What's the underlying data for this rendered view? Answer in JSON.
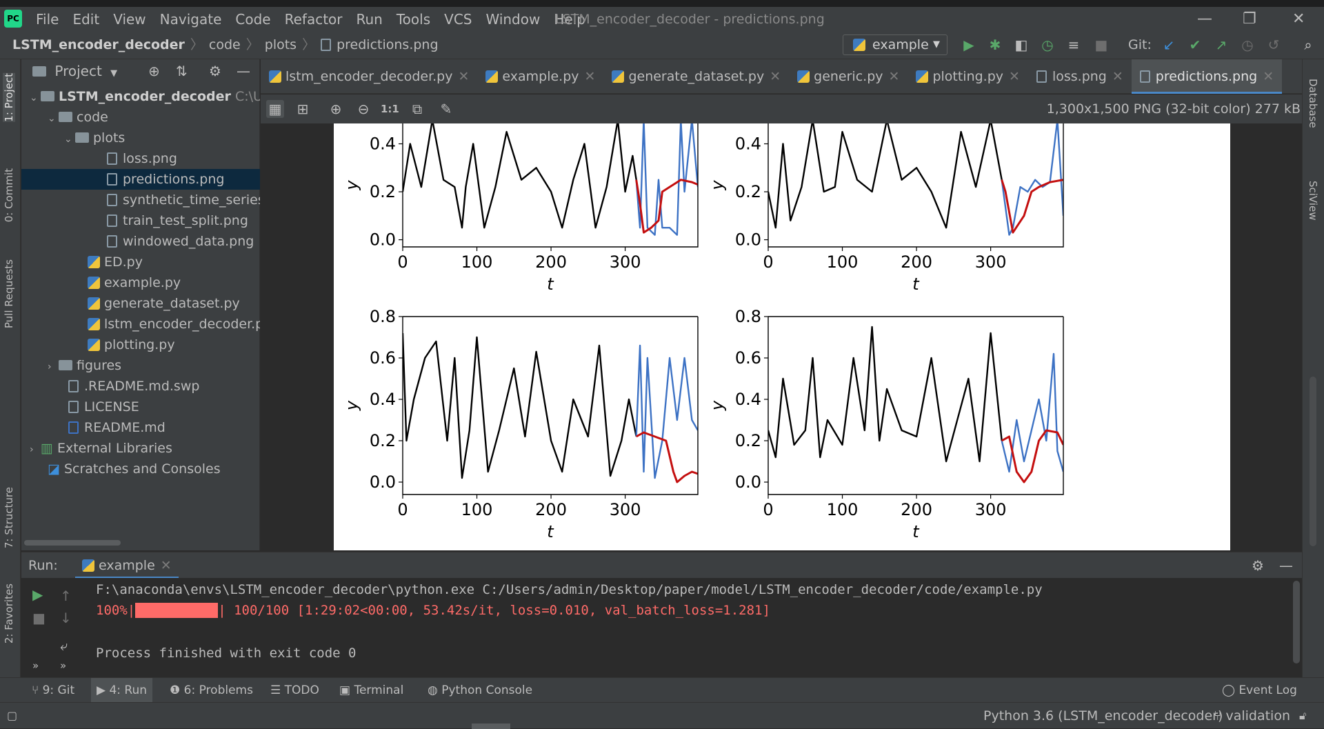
{
  "menubar": {
    "items": [
      "File",
      "Edit",
      "View",
      "Navigate",
      "Code",
      "Refactor",
      "Run",
      "Tools",
      "VCS",
      "Window",
      "Help"
    ],
    "window_title": "LSTM_encoder_decoder - predictions.png"
  },
  "breadcrumb": [
    "LSTM_encoder_decoder",
    "code",
    "plots",
    "predictions.png"
  ],
  "toolbar": {
    "run_config": "example",
    "git_label": "Git:"
  },
  "left_stripe": [
    "1: Project",
    "0: Commit",
    "Pull Requests",
    "7: Structure",
    "2: Favorites"
  ],
  "right_stripe": [
    "Database",
    "SciView"
  ],
  "project": {
    "title": "Project",
    "root": "LSTM_encoder_decoder",
    "root_path": "C:\\Use",
    "items": [
      {
        "label": "code"
      },
      {
        "label": "plots"
      },
      {
        "label": "loss.png"
      },
      {
        "label": "predictions.png"
      },
      {
        "label": "synthetic_time_series.p"
      },
      {
        "label": "train_test_split.png"
      },
      {
        "label": "windowed_data.png"
      },
      {
        "label": "ED.py"
      },
      {
        "label": "example.py"
      },
      {
        "label": "generate_dataset.py"
      },
      {
        "label": "lstm_encoder_decoder.py"
      },
      {
        "label": "plotting.py"
      },
      {
        "label": "figures"
      },
      {
        "label": ".README.md.swp"
      },
      {
        "label": "LICENSE"
      },
      {
        "label": "README.md"
      },
      {
        "label": "External Libraries"
      },
      {
        "label": "Scratches and Consoles"
      }
    ]
  },
  "tabs": [
    "lstm_encoder_decoder.py",
    "example.py",
    "generate_dataset.py",
    "generic.py",
    "plotting.py",
    "loss.png",
    "predictions.png"
  ],
  "image_info": "1,300x1,500 PNG (32-bit color) 277 kB",
  "chart_data": [
    {
      "type": "line",
      "xlabel": "t",
      "ylabel": "y",
      "xticks": [
        "0",
        "100",
        "200",
        "300"
      ],
      "yticks": [
        "0.0",
        "0.2",
        "0.4"
      ],
      "series": [
        {
          "color": "#000000",
          "x": [
            0,
            10,
            25,
            40,
            55,
            70,
            80,
            85,
            95,
            110,
            125,
            140,
            160,
            180,
            200,
            215,
            230,
            245,
            260,
            275,
            290,
            300,
            310,
            315
          ],
          "y": [
            0.2,
            0.4,
            0.22,
            0.5,
            0.25,
            0.22,
            0.05,
            0.22,
            0.4,
            0.05,
            0.22,
            0.45,
            0.25,
            0.3,
            0.2,
            0.05,
            0.25,
            0.4,
            0.05,
            0.22,
            0.5,
            0.2,
            0.35,
            0.25
          ]
        },
        {
          "color": "#3d72c4",
          "x": [
            315,
            320,
            325,
            330,
            340,
            345,
            350,
            360,
            370,
            375,
            380,
            390,
            398
          ],
          "y": [
            0.25,
            0.05,
            0.5,
            0.05,
            0.02,
            0.25,
            0.05,
            0.05,
            0.02,
            0.5,
            0.2,
            0.5,
            0.22
          ]
        },
        {
          "color": "#c40f0f",
          "x": [
            315,
            320,
            325,
            335,
            345,
            350,
            360,
            375,
            390,
            398
          ],
          "y": [
            0.25,
            0.15,
            0.03,
            0.05,
            0.08,
            0.2,
            0.22,
            0.25,
            0.24,
            0.23
          ]
        }
      ]
    },
    {
      "type": "line",
      "xlabel": "t",
      "ylabel": "y",
      "xticks": [
        "0",
        "100",
        "200",
        "300"
      ],
      "yticks": [
        "0.0",
        "0.2",
        "0.4"
      ],
      "series": [
        {
          "color": "#000000",
          "x": [
            0,
            10,
            20,
            30,
            45,
            60,
            75,
            90,
            100,
            120,
            140,
            160,
            180,
            200,
            220,
            240,
            260,
            280,
            300,
            315
          ],
          "y": [
            0.2,
            0.05,
            0.4,
            0.08,
            0.22,
            0.5,
            0.2,
            0.22,
            0.45,
            0.25,
            0.2,
            0.5,
            0.25,
            0.3,
            0.2,
            0.05,
            0.45,
            0.22,
            0.5,
            0.25
          ]
        },
        {
          "color": "#3d72c4",
          "x": [
            315,
            325,
            330,
            340,
            350,
            360,
            370,
            380,
            390,
            398
          ],
          "y": [
            0.25,
            0.02,
            0.05,
            0.22,
            0.2,
            0.25,
            0.22,
            0.24,
            0.5,
            0.1
          ]
        },
        {
          "color": "#c40f0f",
          "x": [
            315,
            320,
            330,
            345,
            355,
            365,
            380,
            398
          ],
          "y": [
            0.25,
            0.2,
            0.03,
            0.1,
            0.2,
            0.22,
            0.24,
            0.25
          ]
        }
      ]
    },
    {
      "type": "line",
      "xlabel": "t",
      "ylabel": "y",
      "xticks": [
        "0",
        "100",
        "200",
        "300"
      ],
      "yticks": [
        "0.0",
        "0.2",
        "0.4",
        "0.6",
        "0.8"
      ],
      "series": [
        {
          "color": "#000000",
          "x": [
            0,
            5,
            15,
            30,
            45,
            60,
            70,
            80,
            90,
            100,
            115,
            130,
            150,
            165,
            180,
            200,
            215,
            230,
            250,
            265,
            280,
            295,
            305,
            315
          ],
          "y": [
            0.72,
            0.2,
            0.4,
            0.6,
            0.68,
            0.2,
            0.6,
            0.02,
            0.25,
            0.7,
            0.05,
            0.25,
            0.55,
            0.22,
            0.63,
            0.2,
            0.05,
            0.4,
            0.22,
            0.66,
            0.03,
            0.2,
            0.4,
            0.22
          ]
        },
        {
          "color": "#3d72c4",
          "x": [
            315,
            320,
            325,
            330,
            340,
            350,
            360,
            370,
            380,
            390,
            398
          ],
          "y": [
            0.22,
            0.66,
            0.05,
            0.6,
            0.02,
            0.2,
            0.6,
            0.3,
            0.6,
            0.3,
            0.25
          ]
        },
        {
          "color": "#c40f0f",
          "x": [
            315,
            325,
            340,
            355,
            365,
            370,
            380,
            390,
            398
          ],
          "y": [
            0.22,
            0.24,
            0.22,
            0.2,
            0.05,
            0.0,
            0.03,
            0.05,
            0.04
          ]
        }
      ]
    },
    {
      "type": "line",
      "xlabel": "t",
      "ylabel": "y",
      "xticks": [
        "0",
        "100",
        "200",
        "300"
      ],
      "yticks": [
        "0.0",
        "0.2",
        "0.4",
        "0.6",
        "0.8"
      ],
      "series": [
        {
          "color": "#000000",
          "x": [
            0,
            10,
            20,
            35,
            50,
            60,
            70,
            80,
            100,
            115,
            130,
            140,
            150,
            160,
            180,
            200,
            220,
            240,
            255,
            270,
            285,
            300,
            315
          ],
          "y": [
            0.25,
            0.12,
            0.5,
            0.18,
            0.25,
            0.6,
            0.12,
            0.3,
            0.18,
            0.6,
            0.25,
            0.75,
            0.2,
            0.45,
            0.25,
            0.22,
            0.6,
            0.1,
            0.3,
            0.5,
            0.1,
            0.72,
            0.2
          ]
        },
        {
          "color": "#3d72c4",
          "x": [
            315,
            325,
            335,
            345,
            355,
            365,
            375,
            385,
            390,
            398
          ],
          "y": [
            0.2,
            0.05,
            0.3,
            0.1,
            0.25,
            0.4,
            0.2,
            0.62,
            0.15,
            0.05
          ]
        },
        {
          "color": "#c40f0f",
          "x": [
            315,
            325,
            335,
            345,
            355,
            365,
            375,
            390,
            398
          ],
          "y": [
            0.2,
            0.22,
            0.05,
            0.0,
            0.05,
            0.2,
            0.25,
            0.24,
            0.18
          ]
        }
      ]
    }
  ],
  "run": {
    "label": "Run:",
    "tab": "example",
    "line1": "F:\\anaconda\\envs\\LSTM_encoder_decoder\\python.exe C:/Users/admin/Desktop/paper/model/LSTM_encoder_decoder/code/example.py",
    "progress_prefix": "100%|",
    "progress_suffix": "| 100/100 [1:29:02<00:00, 53.42s/it, loss=0.010, val_batch_loss=1.281]",
    "progress": 1.0,
    "line3": "Process finished with exit code 0"
  },
  "toolwindows": [
    "9: Git",
    "4: Run",
    "6: Problems",
    "TODO",
    "Terminal",
    "Python Console"
  ],
  "event_log": "Event Log",
  "status": {
    "interpreter": "Python 3.6 (LSTM_encoder_decoder)",
    "branch": "validation"
  }
}
